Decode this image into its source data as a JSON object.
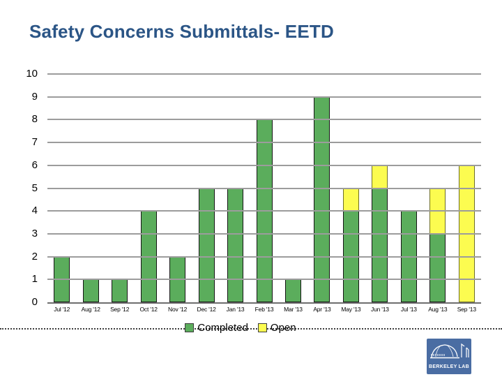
{
  "slide": {
    "title": "Safety Concerns Submittals- EETD",
    "title_color": "#2B5586",
    "background_color": "#FFFFFF"
  },
  "chart_data": {
    "type": "bar",
    "stacked": true,
    "title": "Safety Concerns Submittals- EETD",
    "xlabel": "",
    "ylabel": "",
    "categories": [
      "Jul '12",
      "Aug '12",
      "Sep '12",
      "Oct '12",
      "Nov '12",
      "Dec '12",
      "Jan '13",
      "Feb '13",
      "Mar '13",
      "Apr '13",
      "May '13",
      "Jun '13",
      "Jul '13",
      "Aug '13",
      "Sep '13"
    ],
    "series": [
      {
        "name": "Completed",
        "color": "#5BAD5C",
        "border_color": "#141414",
        "values": [
          2,
          1,
          1,
          4,
          2,
          5,
          5,
          8,
          1,
          9,
          4,
          5,
          4,
          3,
          0
        ]
      },
      {
        "name": "Open",
        "color": "#FCFC50",
        "border_color": "#6E6E28",
        "values": [
          0,
          0,
          0,
          0,
          0,
          0,
          0,
          0,
          0,
          0,
          1,
          1,
          0,
          2,
          6
        ]
      }
    ],
    "totals": [
      2,
      1,
      1,
      4,
      2,
      5,
      5,
      8,
      1,
      9,
      5,
      6,
      4,
      5,
      6
    ],
    "ylim": [
      0,
      10
    ],
    "yticks": [
      "0",
      "1",
      "2",
      "3",
      "4",
      "5",
      "6",
      "7",
      "8",
      "9",
      "10"
    ],
    "grid": true,
    "gridline_color": "#9C9C9C",
    "axis_color": "#6E6E6E",
    "legend_position": "bottom",
    "legend": [
      {
        "label": "Completed",
        "color": "#5BAD5C"
      },
      {
        "label": "Open",
        "color": "#FCFC50"
      }
    ]
  },
  "logo": {
    "label": "BERKELEY LAB",
    "bg_color": "#4A6DA3",
    "fg_color": "#FFFFFF"
  }
}
